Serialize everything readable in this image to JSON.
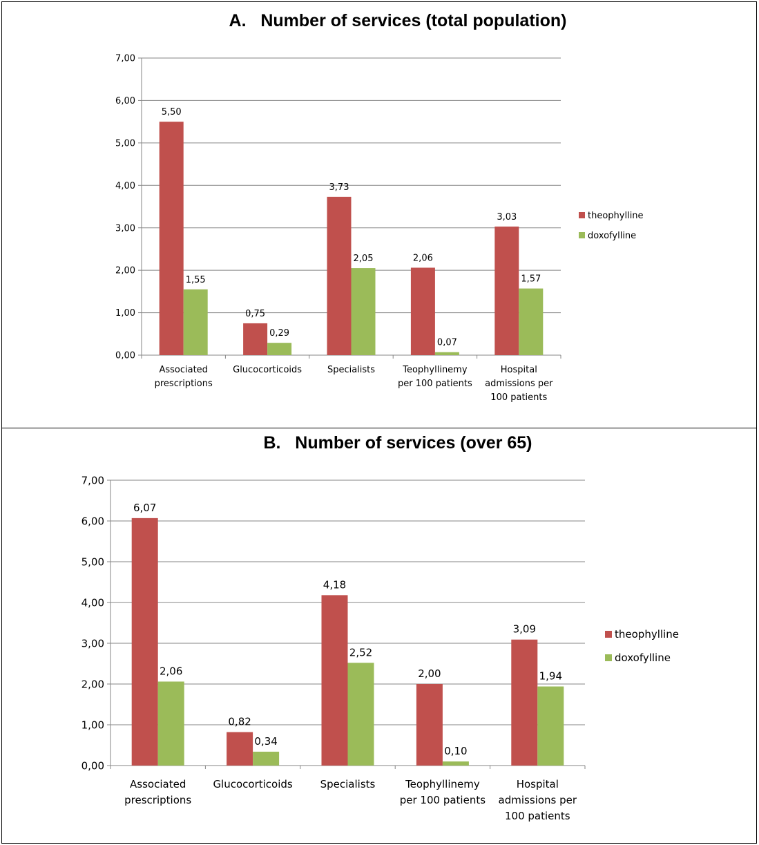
{
  "chart_data": [
    {
      "type": "bar",
      "title": "A.   Number of services (total population)",
      "categories": [
        [
          "Associated",
          "prescriptions"
        ],
        [
          "Glucocorticoids"
        ],
        [
          "Specialists"
        ],
        [
          "Teophyllinemy",
          "per 100 patients"
        ],
        [
          "Hospital",
          "admissions per",
          "100 patients"
        ]
      ],
      "series": [
        {
          "name": "theophylline",
          "color": "#c0504d",
          "values": [
            5.5,
            0.75,
            3.73,
            2.06,
            3.03
          ],
          "labels": [
            "5,50",
            "0,75",
            "3,73",
            "2,06",
            "3,03"
          ]
        },
        {
          "name": "doxofylline",
          "color": "#9bbb59",
          "values": [
            1.55,
            0.29,
            2.05,
            0.07,
            1.57
          ],
          "labels": [
            "1,55",
            "0,29",
            "2,05",
            "0,07",
            "1,57"
          ]
        }
      ],
      "ylim": [
        0,
        7
      ],
      "yticks": [
        "0,00",
        "1,00",
        "2,00",
        "3,00",
        "4,00",
        "5,00",
        "6,00",
        "7,00"
      ],
      "grid": true,
      "legend_position": "right"
    },
    {
      "type": "bar",
      "title": "B.   Number of services (over 65)",
      "categories": [
        [
          "Associated",
          "prescriptions"
        ],
        [
          "Glucocorticoids"
        ],
        [
          "Specialists"
        ],
        [
          "Teophyllinemy",
          "per 100 patients"
        ],
        [
          "Hospital",
          "admissions per",
          "100 patients"
        ]
      ],
      "series": [
        {
          "name": "theophylline",
          "color": "#c0504d",
          "values": [
            6.07,
            0.82,
            4.18,
            2.0,
            3.09
          ],
          "labels": [
            "6,07",
            "0,82",
            "4,18",
            "2,00",
            "3,09"
          ]
        },
        {
          "name": "doxofylline",
          "color": "#9bbb59",
          "values": [
            2.06,
            0.34,
            2.52,
            0.1,
            1.94
          ],
          "labels": [
            "2,06",
            "0,34",
            "2,52",
            "0,10",
            "1,94"
          ]
        }
      ],
      "ylim": [
        0,
        7
      ],
      "yticks": [
        "0,00",
        "1,00",
        "2,00",
        "3,00",
        "4,00",
        "5,00",
        "6,00",
        "7,00"
      ],
      "grid": true,
      "legend_position": "right"
    }
  ]
}
